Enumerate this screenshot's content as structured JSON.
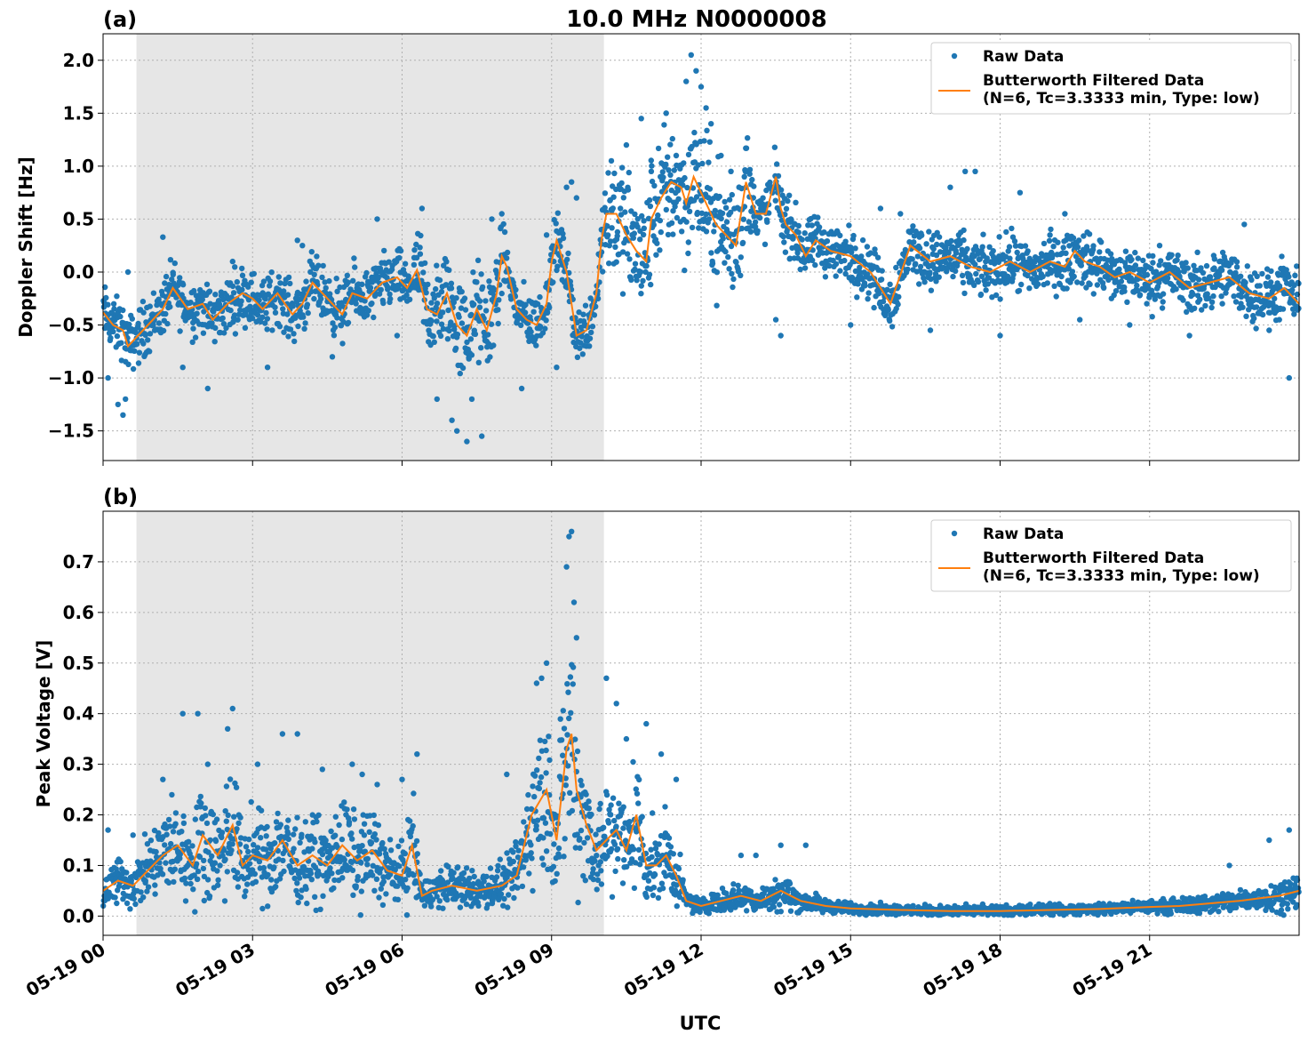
{
  "title": "10.0 MHz N0000008",
  "xlabel": "UTC",
  "colors": {
    "raw": "#1f77b4",
    "filtered": "#ff7f0e",
    "shade": "#e6e6e6",
    "grid": "#b0b0b0"
  },
  "legend": {
    "raw_label": "Raw Data",
    "filtered_label_line1": "Butterworth Filtered Data",
    "filtered_label_line2": "(N=6, Tc=3.3333 min, Type: low)"
  },
  "chart_data": [
    {
      "type": "scatter",
      "panel_label": "(a)",
      "ylabel": "Doppler Shift [Hz]",
      "xlim_hours": [
        0,
        24
      ],
      "ylim": [
        -1.78,
        2.25
      ],
      "yticks": [
        2.0,
        1.5,
        1.0,
        0.5,
        0.0,
        -0.5,
        -1.0,
        -1.5
      ],
      "ytick_labels": [
        "2.0",
        "1.5",
        "1.0",
        "0.5",
        "0.0",
        "−0.5",
        "−1.0",
        "−1.5"
      ],
      "xticks_hours": [
        0,
        3,
        6,
        9,
        12,
        15,
        18,
        21
      ],
      "xtick_labels": [
        "05-19 00",
        "05-19 03",
        "05-19 06",
        "05-19 09",
        "05-19 12",
        "05-19 15",
        "05-19 18",
        "05-19 21"
      ],
      "shaded_region_hours": [
        0.67,
        10.05
      ],
      "grid": true,
      "legend_position": "top-right",
      "series": [
        {
          "name": "Butterworth Filtered Data",
          "style": "line",
          "x_hours": [
            0,
            0.2,
            0.4,
            0.5,
            0.7,
            1.0,
            1.2,
            1.4,
            1.7,
            2.0,
            2.2,
            2.5,
            2.8,
            3.0,
            3.2,
            3.5,
            3.8,
            4.0,
            4.2,
            4.4,
            4.6,
            4.8,
            5.0,
            5.3,
            5.6,
            5.9,
            6.1,
            6.3,
            6.5,
            6.7,
            6.9,
            7.1,
            7.3,
            7.5,
            7.7,
            7.9,
            8.0,
            8.1,
            8.3,
            8.5,
            8.7,
            8.9,
            9.0,
            9.1,
            9.3,
            9.5,
            9.7,
            9.9,
            10.0,
            10.1,
            10.3,
            10.5,
            10.7,
            10.9,
            11.0,
            11.2,
            11.4,
            11.6,
            11.7,
            11.85,
            12.0,
            12.2,
            12.3,
            12.5,
            12.7,
            12.9,
            13.1,
            13.3,
            13.5,
            13.6,
            13.7,
            13.9,
            14.1,
            14.3,
            14.6,
            15.0,
            15.4,
            15.8,
            16.2,
            16.6,
            17.0,
            17.4,
            17.8,
            18.2,
            18.6,
            19.0,
            19.3,
            19.5,
            19.7,
            20.0,
            20.3,
            20.6,
            21.0,
            21.4,
            21.8,
            22.2,
            22.6,
            23.0,
            23.4,
            23.7,
            24.0
          ],
          "y": [
            -0.38,
            -0.5,
            -0.55,
            -0.7,
            -0.6,
            -0.45,
            -0.35,
            -0.15,
            -0.35,
            -0.3,
            -0.45,
            -0.3,
            -0.2,
            -0.25,
            -0.35,
            -0.2,
            -0.4,
            -0.3,
            -0.1,
            -0.2,
            -0.3,
            -0.4,
            -0.2,
            -0.25,
            -0.1,
            -0.05,
            -0.15,
            0.02,
            -0.35,
            -0.4,
            -0.2,
            -0.5,
            -0.6,
            -0.35,
            -0.55,
            -0.2,
            0.15,
            0.05,
            -0.35,
            -0.45,
            -0.5,
            -0.3,
            0.1,
            0.3,
            0.0,
            -0.6,
            -0.55,
            -0.2,
            0.3,
            0.55,
            0.55,
            0.35,
            0.2,
            0.1,
            0.5,
            0.7,
            0.85,
            0.8,
            0.65,
            0.9,
            0.75,
            0.55,
            0.45,
            0.35,
            0.25,
            0.85,
            0.55,
            0.55,
            0.9,
            0.6,
            0.45,
            0.35,
            0.15,
            0.3,
            0.2,
            0.15,
            0.0,
            -0.3,
            0.25,
            0.1,
            0.15,
            0.05,
            0.0,
            0.1,
            0.0,
            0.1,
            0.05,
            0.2,
            0.1,
            0.05,
            -0.05,
            0.0,
            -0.1,
            0.0,
            -0.15,
            -0.1,
            -0.05,
            -0.2,
            -0.25,
            -0.15,
            -0.3
          ]
        },
        {
          "name": "Raw Data",
          "style": "points",
          "x_hours": [
            0.1,
            0.3,
            0.4,
            0.45,
            0.5,
            1.2,
            1.6,
            2.1,
            2.6,
            3.3,
            3.9,
            4.0,
            4.6,
            5.5,
            5.9,
            6.4,
            6.7,
            7.0,
            7.1,
            7.3,
            7.4,
            7.6,
            7.8,
            8.0,
            8.4,
            8.9,
            9.1,
            9.2,
            9.3,
            9.4,
            9.5,
            10.0,
            10.2,
            10.5,
            10.8,
            11.0,
            11.3,
            11.5,
            11.7,
            11.8,
            11.9,
            12.0,
            12.1,
            12.2,
            12.4,
            12.6,
            12.9,
            13.2,
            13.5,
            13.6,
            13.8,
            14.2,
            15.0,
            15.6,
            16.0,
            16.6,
            17.0,
            17.3,
            17.5,
            18.0,
            18.4,
            19.0,
            19.3,
            19.6,
            20.0,
            20.6,
            21.2,
            21.8,
            22.4,
            22.9,
            23.4,
            23.8
          ],
          "y": [
            -1.0,
            -1.25,
            -1.35,
            -1.2,
            0.0,
            0.33,
            -0.9,
            -1.1,
            0.1,
            -0.9,
            0.3,
            0.25,
            -0.8,
            0.5,
            -0.6,
            0.6,
            -1.2,
            -1.4,
            -1.5,
            -1.6,
            -1.2,
            -1.55,
            0.5,
            0.55,
            -1.1,
            0.35,
            -0.9,
            0.4,
            0.8,
            0.85,
            0.7,
            0.4,
            1.05,
            1.2,
            1.45,
            0.95,
            1.5,
            1.1,
            1.8,
            2.05,
            1.9,
            1.75,
            1.55,
            1.4,
            1.1,
            0.95,
            0.8,
            0.6,
            -0.45,
            -0.6,
            0.5,
            0.35,
            -0.5,
            0.6,
            0.55,
            -0.55,
            0.8,
            0.95,
            0.95,
            -0.6,
            0.75,
            0.35,
            0.55,
            -0.45,
            0.3,
            -0.5,
            0.25,
            -0.6,
            0.1,
            0.45,
            -0.55,
            -1.0
          ]
        }
      ]
    },
    {
      "type": "scatter",
      "panel_label": "(b)",
      "ylabel": "Peak Voltage [V]",
      "xlim_hours": [
        0,
        24
      ],
      "ylim": [
        -0.038,
        0.8
      ],
      "yticks": [
        0.7,
        0.6,
        0.5,
        0.4,
        0.3,
        0.2,
        0.1,
        0.0
      ],
      "ytick_labels": [
        "0.7",
        "0.6",
        "0.5",
        "0.4",
        "0.3",
        "0.2",
        "0.1",
        "0.0"
      ],
      "xticks_hours": [
        0,
        3,
        6,
        9,
        12,
        15,
        18,
        21
      ],
      "xtick_labels": [
        "05-19 00",
        "05-19 03",
        "05-19 06",
        "05-19 09",
        "05-19 12",
        "05-19 15",
        "05-19 18",
        "05-19 21"
      ],
      "shaded_region_hours": [
        0.67,
        10.05
      ],
      "grid": true,
      "legend_position": "top-right",
      "series": [
        {
          "name": "Butterworth Filtered Data",
          "style": "line",
          "x_hours": [
            0,
            0.3,
            0.6,
            0.9,
            1.2,
            1.5,
            1.8,
            2.0,
            2.3,
            2.6,
            2.8,
            3.0,
            3.3,
            3.6,
            3.9,
            4.2,
            4.5,
            4.8,
            5.1,
            5.4,
            5.7,
            6.0,
            6.2,
            6.4,
            6.6,
            7.0,
            7.5,
            8.0,
            8.3,
            8.6,
            8.9,
            9.1,
            9.3,
            9.4,
            9.5,
            9.7,
            9.9,
            10.1,
            10.3,
            10.5,
            10.7,
            10.9,
            11.1,
            11.3,
            11.5,
            11.7,
            12.0,
            12.4,
            12.8,
            13.2,
            13.6,
            14.0,
            14.5,
            15.0,
            16.0,
            17.0,
            18.0,
            19.0,
            20.0,
            21.0,
            21.6,
            22.2,
            22.8,
            23.2,
            23.6,
            24.0
          ],
          "y": [
            0.05,
            0.07,
            0.06,
            0.09,
            0.12,
            0.14,
            0.1,
            0.16,
            0.12,
            0.18,
            0.1,
            0.12,
            0.11,
            0.15,
            0.1,
            0.12,
            0.1,
            0.14,
            0.11,
            0.13,
            0.09,
            0.08,
            0.14,
            0.04,
            0.05,
            0.06,
            0.05,
            0.06,
            0.08,
            0.2,
            0.25,
            0.15,
            0.33,
            0.36,
            0.25,
            0.18,
            0.13,
            0.15,
            0.17,
            0.13,
            0.2,
            0.1,
            0.1,
            0.12,
            0.08,
            0.03,
            0.02,
            0.03,
            0.04,
            0.03,
            0.05,
            0.03,
            0.02,
            0.015,
            0.012,
            0.01,
            0.01,
            0.012,
            0.014,
            0.018,
            0.02,
            0.025,
            0.03,
            0.035,
            0.04,
            0.05
          ]
        },
        {
          "name": "Raw Data",
          "style": "points",
          "x_hours": [
            0.1,
            0.6,
            1.2,
            1.6,
            1.9,
            2.1,
            2.5,
            2.6,
            3.1,
            3.6,
            3.9,
            4.4,
            5.0,
            5.2,
            5.5,
            6.0,
            6.3,
            8.1,
            8.7,
            8.8,
            8.9,
            9.3,
            9.35,
            9.4,
            9.45,
            9.5,
            10.1,
            10.3,
            10.5,
            10.9,
            11.2,
            11.5,
            12.8,
            13.1,
            13.6,
            14.1,
            22.6,
            23.4,
            23.8
          ],
          "y": [
            0.17,
            0.16,
            0.27,
            0.4,
            0.4,
            0.3,
            0.37,
            0.41,
            0.3,
            0.36,
            0.36,
            0.29,
            0.3,
            0.28,
            0.26,
            0.27,
            0.32,
            0.28,
            0.46,
            0.47,
            0.5,
            0.69,
            0.75,
            0.76,
            0.62,
            0.55,
            0.47,
            0.42,
            0.35,
            0.38,
            0.32,
            0.27,
            0.12,
            0.12,
            0.14,
            0.14,
            0.1,
            0.15,
            0.17
          ]
        }
      ]
    }
  ]
}
